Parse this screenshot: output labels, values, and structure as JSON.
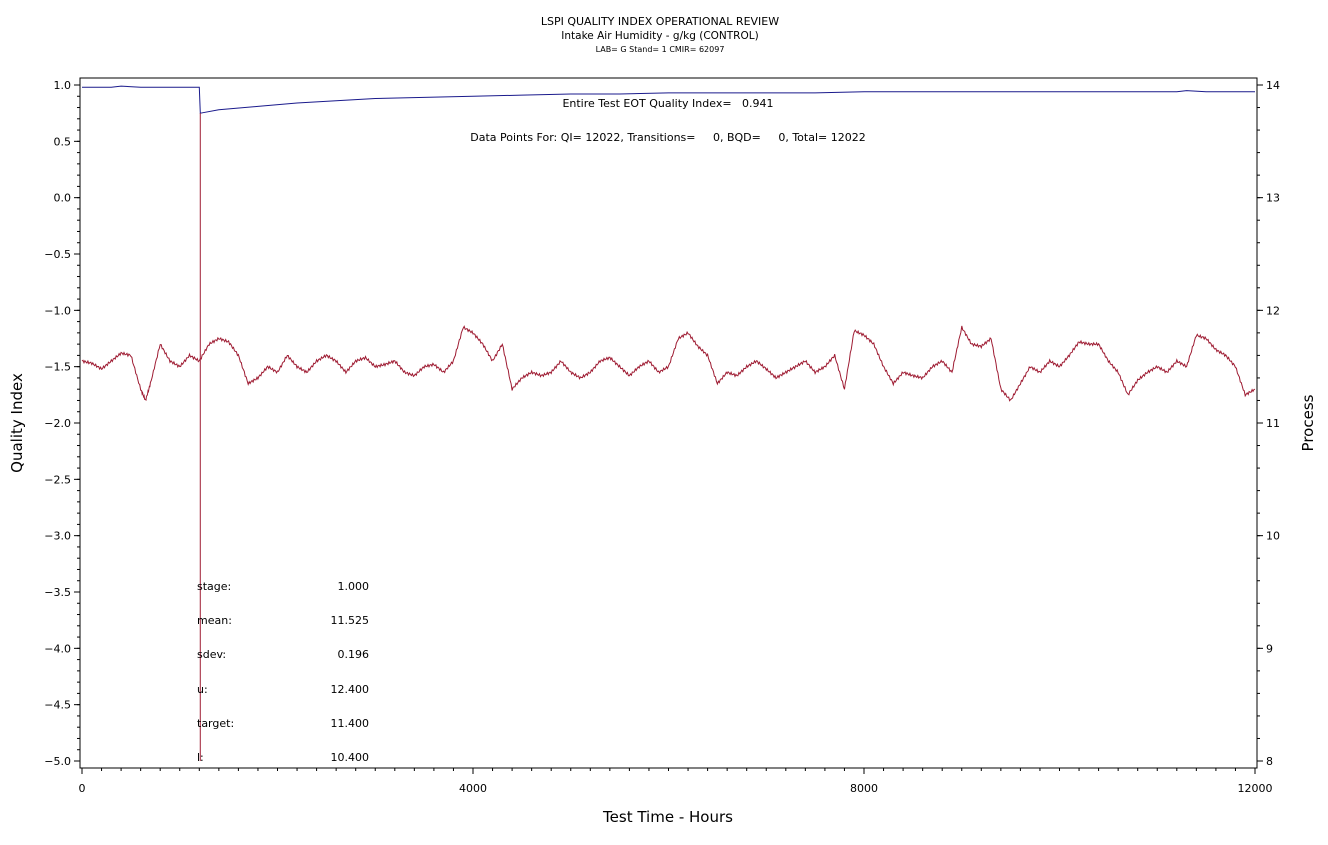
{
  "chart_data": {
    "type": "line",
    "title": "LSPI QUALITY INDEX OPERATIONAL REVIEW",
    "subtitle": "Intake Air Humidity - g/kg (CONTROL)",
    "subtitle2": "LAB= G Stand= 1 CMIR= 62097",
    "xlabel": "Test Time - Hours",
    "ylabel": "Quality Index",
    "y2label": "Process",
    "xlim": [
      0,
      12000
    ],
    "ylim": [
      -5.0,
      1.0
    ],
    "y2lim": [
      8,
      14
    ],
    "x_ticks": [
      "0",
      "4000",
      "8000",
      "12000"
    ],
    "y_ticks": [
      "1.0",
      "0.5",
      "0.0",
      "-0.5",
      "-1.0",
      "-1.5",
      "-2.0",
      "-2.5",
      "-3.0",
      "-3.5",
      "-4.0",
      "-4.5",
      "-5.0"
    ],
    "y2_ticks": [
      "14",
      "13",
      "12",
      "11",
      "10",
      "9",
      "8"
    ],
    "annotations": {
      "eot": "Entire Test EOT Quality Index=   0.941",
      "points": "Data Points For: QI= 12022, Transitions=     0, BQD=     0, Total= 12022"
    },
    "stats": [
      {
        "label": "stage:",
        "value": "1.000"
      },
      {
        "label": "mean:",
        "value": "11.525"
      },
      {
        "label": "sdev:",
        "value": "0.196"
      },
      {
        "label": "u:",
        "value": "12.400"
      },
      {
        "label": "target:",
        "value": "11.400"
      },
      {
        "label": "l:",
        "value": "10.400"
      }
    ],
    "grid": false,
    "legend": "none",
    "series": [
      {
        "axis": "left",
        "color": "#1a1a8c",
        "x": [
          0,
          300,
          400,
          600,
          800,
          1000,
          1200,
          1210,
          1400,
          1800,
          2200,
          2600,
          3000,
          3500,
          4000,
          4500,
          5000,
          5500,
          6000,
          6500,
          7000,
          7500,
          8000,
          8500,
          9000,
          9500,
          10000,
          10500,
          11000,
          11200,
          11300,
          11500,
          12000
        ],
        "y": [
          0.98,
          0.98,
          0.99,
          0.98,
          0.98,
          0.98,
          0.98,
          0.75,
          0.78,
          0.81,
          0.84,
          0.86,
          0.88,
          0.89,
          0.9,
          0.91,
          0.92,
          0.92,
          0.93,
          0.93,
          0.93,
          0.93,
          0.94,
          0.94,
          0.94,
          0.94,
          0.94,
          0.94,
          0.94,
          0.94,
          0.95,
          0.94,
          0.94
        ]
      },
      {
        "axis": "right",
        "color": "#9e1b32",
        "x": [
          0,
          100,
          200,
          300,
          400,
          500,
          600,
          650,
          700,
          800,
          900,
          1000,
          1100,
          1200,
          1300,
          1400,
          1500,
          1600,
          1700,
          1800,
          1900,
          2000,
          2100,
          2200,
          2300,
          2400,
          2500,
          2600,
          2700,
          2800,
          2900,
          3000,
          3100,
          3200,
          3300,
          3400,
          3500,
          3600,
          3700,
          3800,
          3900,
          4000,
          4100,
          4200,
          4300,
          4400,
          4500,
          4600,
          4700,
          4800,
          4900,
          5000,
          5100,
          5200,
          5300,
          5400,
          5500,
          5600,
          5700,
          5800,
          5900,
          6000,
          6100,
          6200,
          6300,
          6400,
          6500,
          6600,
          6700,
          6800,
          6900,
          7000,
          7100,
          7200,
          7300,
          7400,
          7500,
          7600,
          7700,
          7800,
          7900,
          8000,
          8100,
          8200,
          8300,
          8400,
          8500,
          8600,
          8700,
          8800,
          8900,
          9000,
          9100,
          9200,
          9300,
          9400,
          9500,
          9600,
          9700,
          9800,
          9900,
          10000,
          10100,
          10200,
          10300,
          10400,
          10500,
          10600,
          10700,
          10800,
          10900,
          11000,
          11100,
          11200,
          11300,
          11400,
          11500,
          11600,
          11700,
          11800,
          11900,
          12000
        ],
        "y": [
          11.55,
          11.53,
          11.48,
          11.55,
          11.62,
          11.6,
          11.3,
          11.2,
          11.35,
          11.7,
          11.55,
          11.5,
          11.6,
          11.55,
          11.7,
          11.75,
          11.72,
          11.6,
          11.35,
          11.4,
          11.5,
          11.45,
          11.6,
          11.5,
          11.45,
          11.55,
          11.6,
          11.55,
          11.45,
          11.55,
          11.58,
          11.5,
          11.52,
          11.55,
          11.45,
          11.42,
          11.5,
          11.52,
          11.45,
          11.55,
          11.85,
          11.8,
          11.7,
          11.55,
          11.7,
          11.3,
          11.4,
          11.45,
          11.42,
          11.45,
          11.55,
          11.45,
          11.4,
          11.45,
          11.55,
          11.58,
          11.5,
          11.42,
          11.5,
          11.55,
          11.45,
          11.5,
          11.75,
          11.8,
          11.68,
          11.6,
          11.35,
          11.45,
          11.42,
          11.5,
          11.55,
          11.48,
          11.4,
          11.45,
          11.5,
          11.55,
          11.45,
          11.5,
          11.6,
          11.3,
          11.82,
          11.78,
          11.7,
          11.5,
          11.35,
          11.45,
          11.42,
          11.4,
          11.5,
          11.55,
          11.45,
          11.85,
          11.7,
          11.68,
          11.75,
          11.3,
          11.2,
          11.35,
          11.5,
          11.45,
          11.55,
          11.5,
          11.6,
          11.72,
          11.7,
          11.7,
          11.55,
          11.45,
          11.25,
          11.38,
          11.45,
          11.5,
          11.45,
          11.55,
          11.5,
          11.78,
          11.75,
          11.65,
          11.6,
          11.5,
          11.25,
          11.3
        ]
      }
    ],
    "spike": {
      "x": 1210,
      "y_from": -5.0,
      "y_to": 0.75
    }
  }
}
